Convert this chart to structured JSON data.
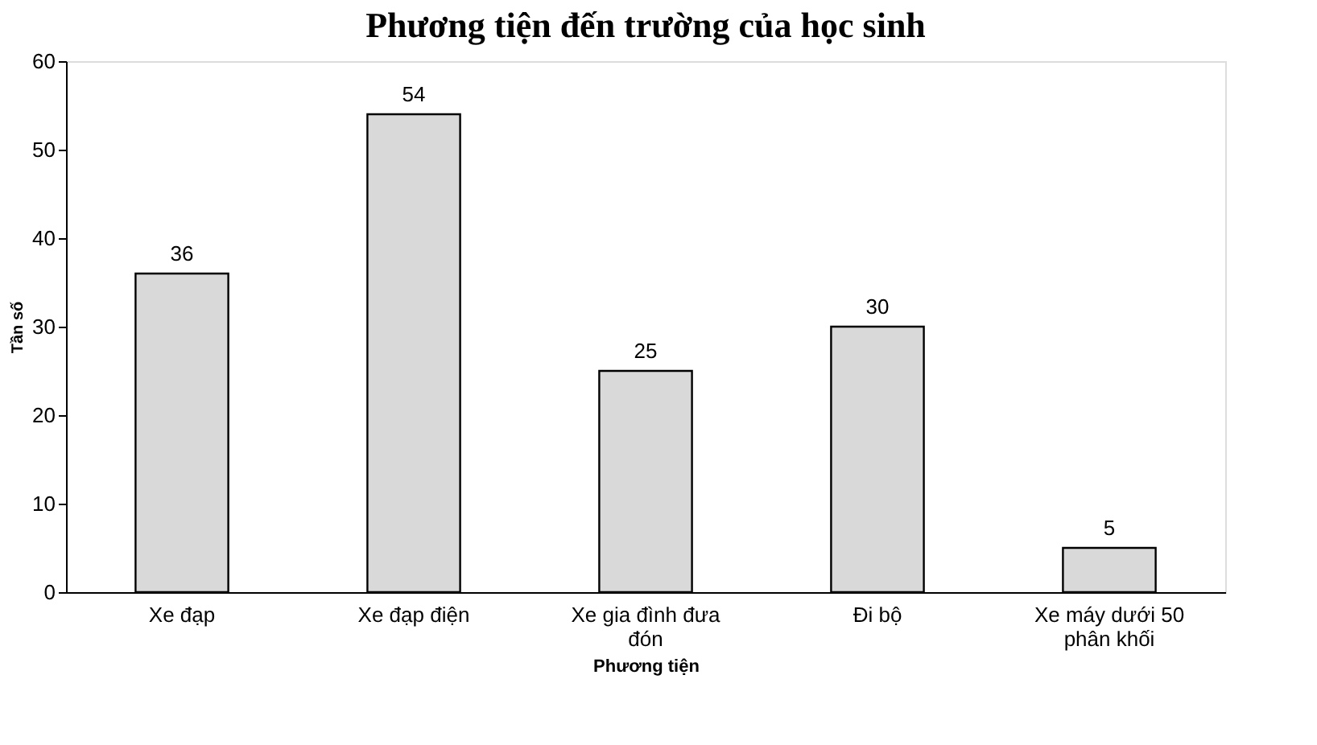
{
  "chart_data": {
    "type": "bar",
    "title": "Phương tiện đến trường của học sinh",
    "xlabel": "Phương tiện",
    "ylabel": "Tần số",
    "categories": [
      "Xe đạp",
      "Xe đạp điện",
      "Xe gia đình đưa đón",
      "Đi bộ",
      "Xe máy dưới 50 phân khối"
    ],
    "values": [
      36,
      54,
      25,
      30,
      5
    ],
    "color": "#d9d9d9",
    "ylim": [
      0,
      60
    ],
    "yticks": [
      0,
      10,
      20,
      30,
      40,
      50,
      60
    ],
    "grid": false,
    "data_labels": true
  }
}
